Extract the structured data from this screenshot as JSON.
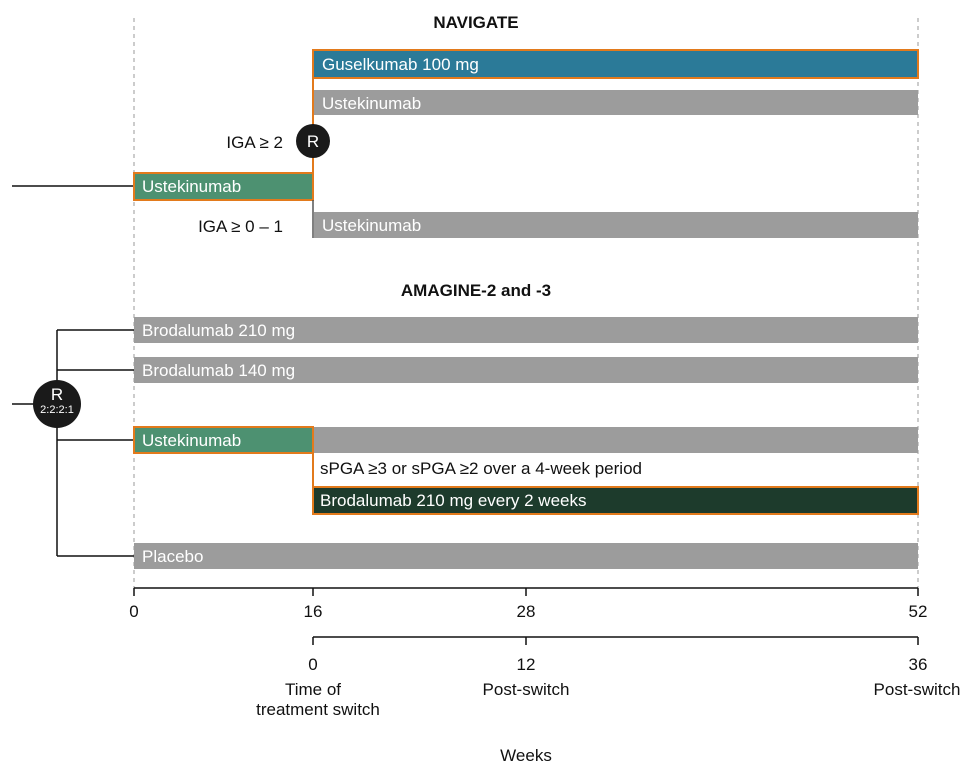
{
  "colors": {
    "teal": "#2b7a98",
    "gray": "#9c9c9c",
    "green": "#4d9171",
    "dark_green": "#1d3b2c",
    "orange_outline": "#e27a1c",
    "black": "#111111"
  },
  "navigate": {
    "title": "NAVIGATE",
    "guselkumab": "Guselkumab 100 mg",
    "ustekinumab_upper": "Ustekinumab",
    "iga_high": "IGA ≥ 2",
    "randomization": "R",
    "ustekinumab_run_in": "Ustekinumab",
    "iga_low": "IGA ≥ 0 – 1",
    "ustekinumab_lower": "Ustekinumab"
  },
  "amagine": {
    "title": "AMAGINE-2 and -3",
    "randomization": "R",
    "ratio": "2:2:2:1",
    "brodalumab_210": "Brodalumab 210 mg",
    "brodalumab_140": "Brodalumab 140 mg",
    "ustekinumab": "Ustekinumab",
    "criteria": "sPGA ≥3 or sPGA ≥2 over a 4-week period",
    "brodalumab_switch": "Brodalumab 210 mg every 2 weeks",
    "placebo": "Placebo"
  },
  "axis": {
    "weeks_ticks": [
      "0",
      "16",
      "28",
      "52"
    ],
    "post_ticks": [
      "0",
      "12",
      "36"
    ],
    "post_label_0_line1": "Time of",
    "post_label_0_line2": "treatment switch",
    "post_label_12": "Post-switch",
    "post_label_36": "Post-switch",
    "xlabel": "Weeks"
  }
}
